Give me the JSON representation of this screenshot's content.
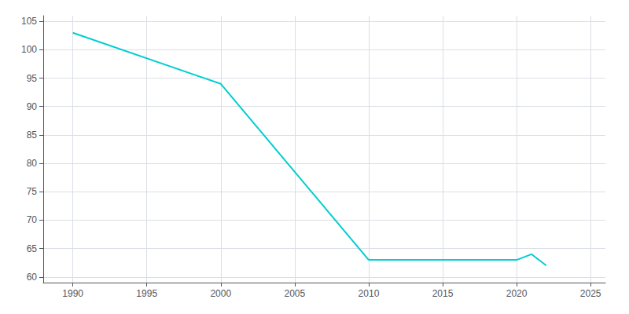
{
  "chart_data": {
    "type": "line",
    "x": [
      1990,
      2000,
      2010,
      2020,
      2021,
      2022
    ],
    "values": [
      103,
      94,
      63,
      63,
      64,
      62
    ],
    "color": "#00CED1",
    "xlim": [
      1988,
      2026
    ],
    "xticks": [
      1990,
      1995,
      2000,
      2005,
      2010,
      2015,
      2020,
      2025
    ],
    "ylim": [
      59,
      106
    ],
    "yticks": [
      60,
      65,
      70,
      75,
      80,
      85,
      90,
      95,
      100,
      105
    ],
    "grid": true
  }
}
